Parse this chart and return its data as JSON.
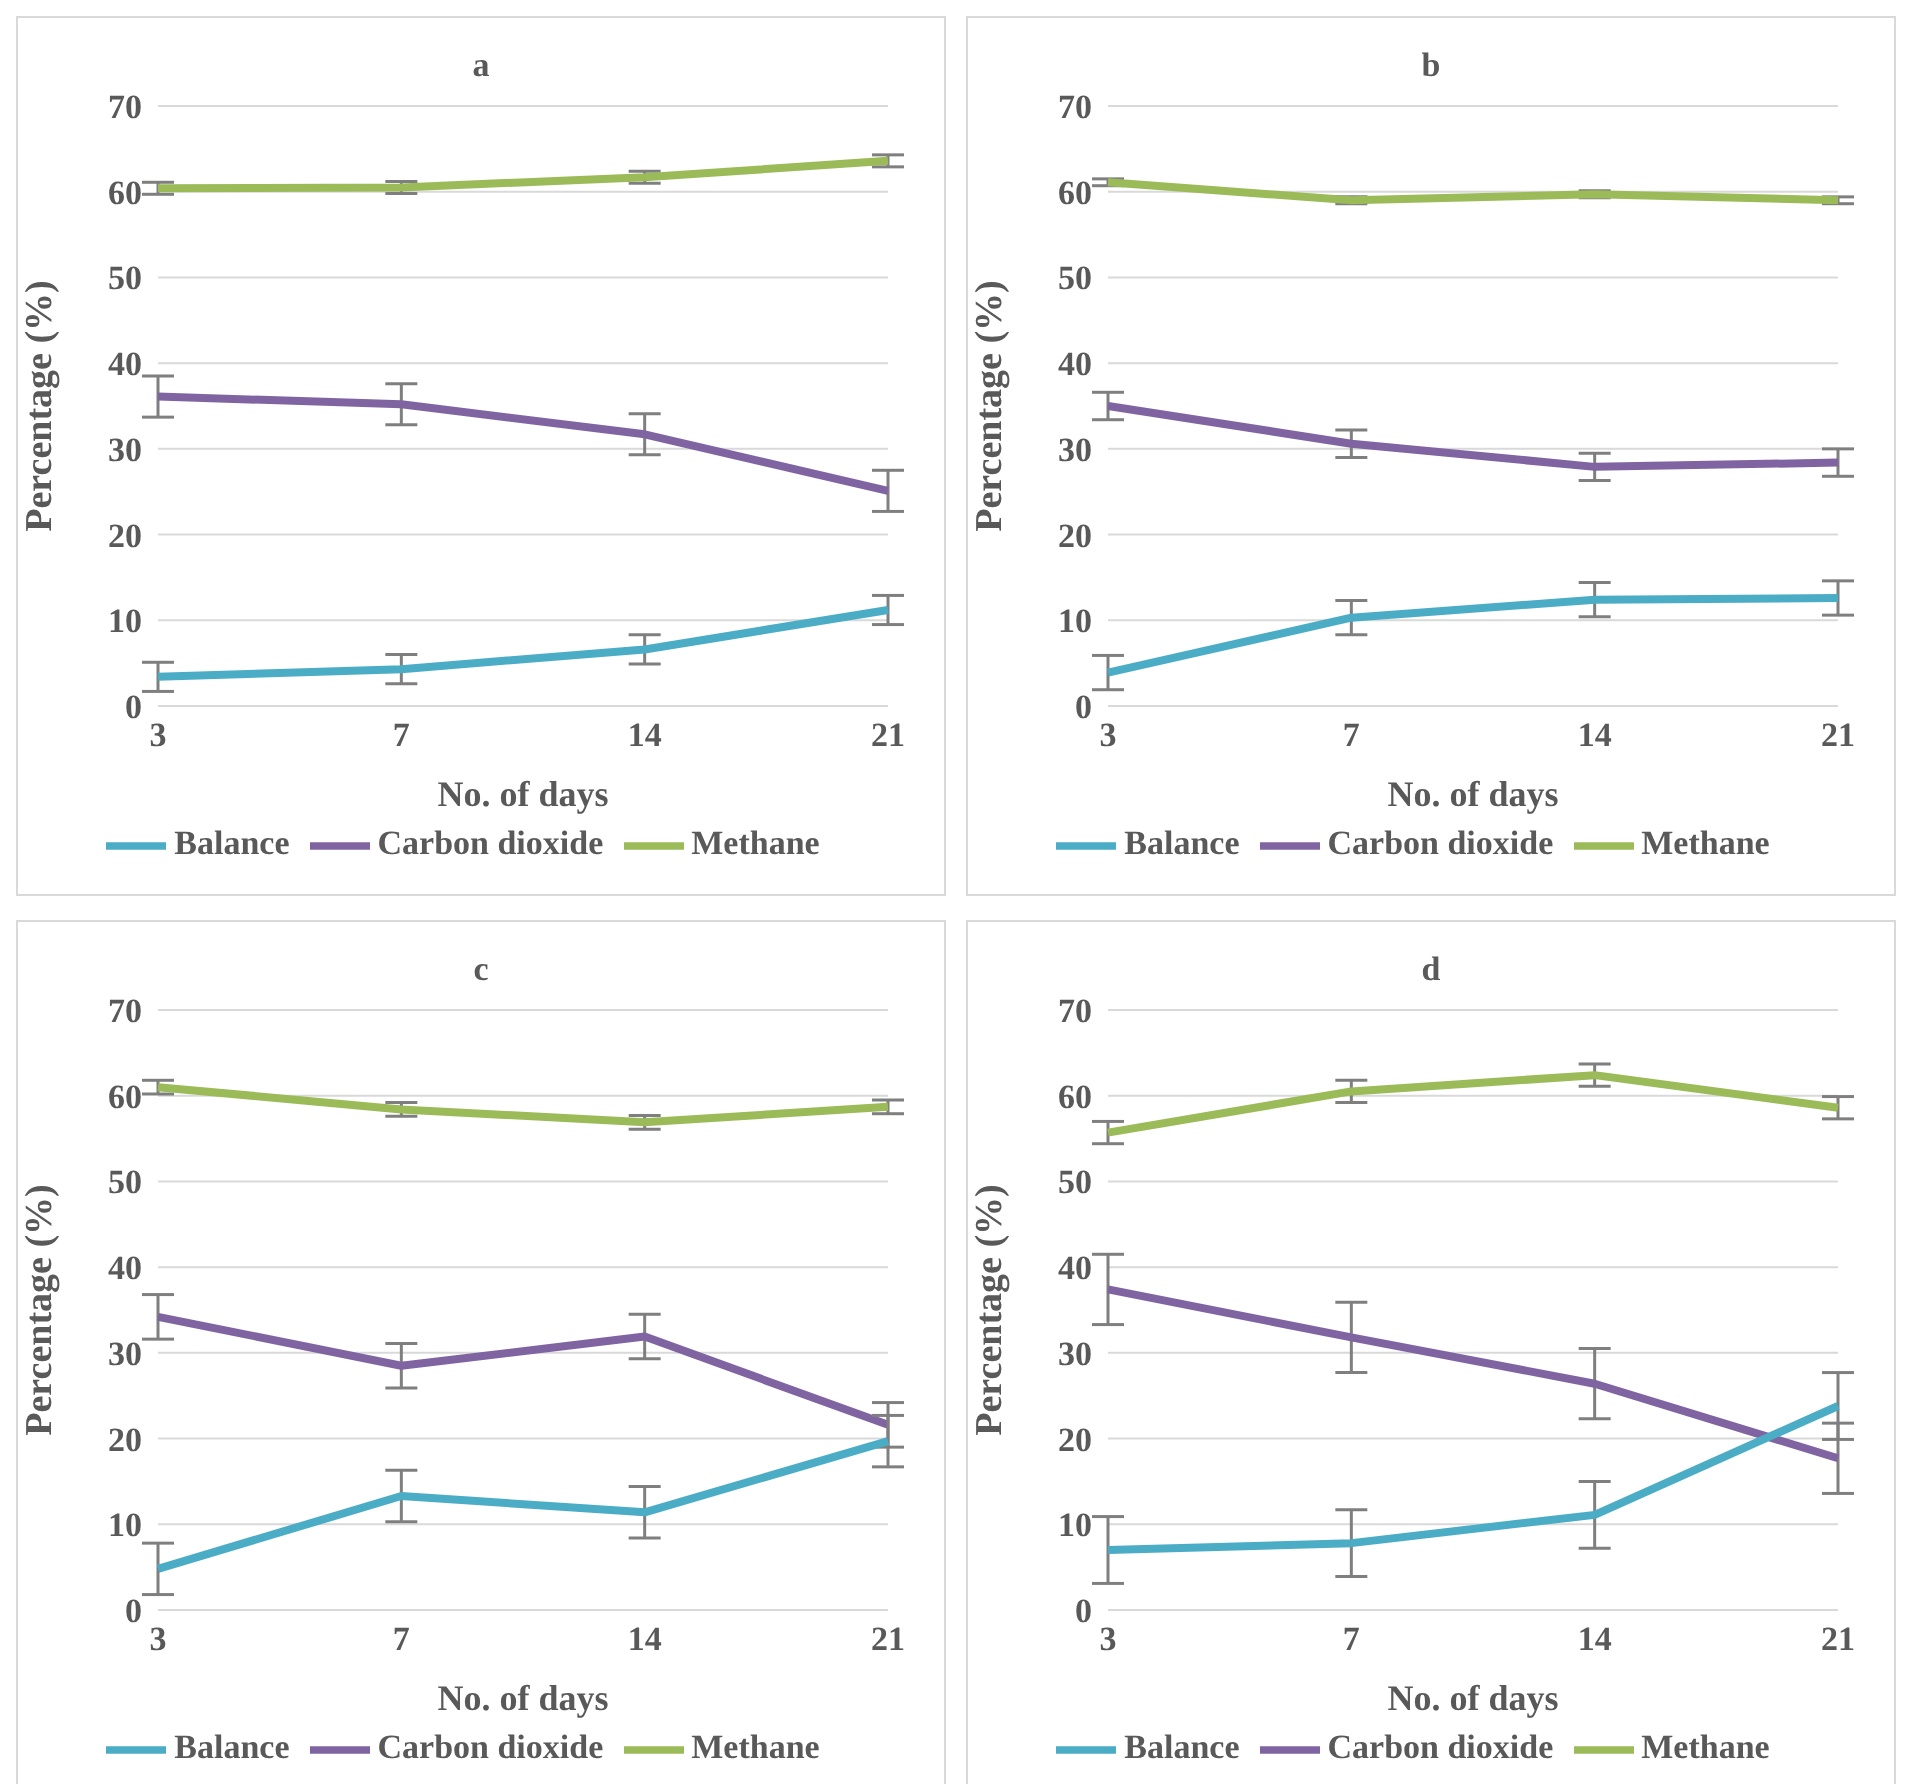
{
  "chart_data": [
    {
      "type": "line",
      "title": "a",
      "xlabel": "No. of days",
      "ylabel": "Percentage (%)",
      "categories": [
        "3",
        "7",
        "14",
        "21"
      ],
      "ylim": [
        0,
        70
      ],
      "yticks": [
        0,
        10,
        20,
        30,
        40,
        50,
        60,
        70
      ],
      "grid": "y",
      "legend": "bottom",
      "marker": "none",
      "line_style": "solid",
      "series": [
        {
          "name": "Methane",
          "color": "#9bbb59",
          "values": [
            60.4,
            60.5,
            61.7,
            63.6
          ],
          "errors": [
            0.7,
            0.7,
            0.7,
            0.7
          ]
        },
        {
          "name": "Carbon dioxide",
          "color": "#8064a2",
          "values": [
            36.1,
            35.2,
            31.7,
            25.1
          ],
          "errors": [
            2.4,
            2.4,
            2.4,
            2.4
          ]
        },
        {
          "name": "Balance",
          "color": "#4bacc6",
          "values": [
            3.4,
            4.3,
            6.6,
            11.2
          ],
          "errors": [
            1.7,
            1.7,
            1.7,
            1.7
          ]
        }
      ]
    },
    {
      "type": "line",
      "title": "b",
      "xlabel": "No. of days",
      "ylabel": "Percentage (%)",
      "categories": [
        "3",
        "7",
        "14",
        "21"
      ],
      "ylim": [
        0,
        70
      ],
      "yticks": [
        0,
        10,
        20,
        30,
        40,
        50,
        60,
        70
      ],
      "grid": "y",
      "legend": "bottom",
      "marker": "none",
      "line_style": "solid",
      "series": [
        {
          "name": "Methane",
          "color": "#9bbb59",
          "values": [
            61.1,
            59.0,
            59.7,
            59.0
          ],
          "errors": [
            0.4,
            0.4,
            0.4,
            0.4
          ]
        },
        {
          "name": "Carbon dioxide",
          "color": "#8064a2",
          "values": [
            35.0,
            30.6,
            27.9,
            28.4
          ],
          "errors": [
            1.6,
            1.6,
            1.6,
            1.6
          ]
        },
        {
          "name": "Balance",
          "color": "#4bacc6",
          "values": [
            3.9,
            10.3,
            12.4,
            12.6
          ],
          "errors": [
            2.0,
            2.0,
            2.0,
            2.0
          ]
        }
      ]
    },
    {
      "type": "line",
      "title": "c",
      "xlabel": "No. of days",
      "ylabel": "Percentage (%)",
      "categories": [
        "3",
        "7",
        "14",
        "21"
      ],
      "ylim": [
        0,
        70
      ],
      "yticks": [
        0,
        10,
        20,
        30,
        40,
        50,
        60,
        70
      ],
      "grid": "y",
      "legend": "bottom",
      "marker": "none",
      "line_style": "solid",
      "series": [
        {
          "name": "Methane",
          "color": "#9bbb59",
          "values": [
            61.0,
            58.4,
            56.9,
            58.7
          ],
          "errors": [
            0.8,
            0.8,
            0.8,
            0.8
          ]
        },
        {
          "name": "Carbon dioxide",
          "color": "#8064a2",
          "values": [
            34.2,
            28.5,
            31.9,
            21.6
          ],
          "errors": [
            2.6,
            2.6,
            2.6,
            2.6
          ]
        },
        {
          "name": "Balance",
          "color": "#4bacc6",
          "values": [
            4.8,
            13.3,
            11.4,
            19.7
          ],
          "errors": [
            3.0,
            3.0,
            3.0,
            3.0
          ]
        }
      ]
    },
    {
      "type": "line",
      "title": "d",
      "xlabel": "No. of days",
      "ylabel": "Percentage (%)",
      "categories": [
        "3",
        "7",
        "14",
        "21"
      ],
      "ylim": [
        0,
        70
      ],
      "yticks": [
        0,
        10,
        20,
        30,
        40,
        50,
        60,
        70
      ],
      "grid": "y",
      "legend": "bottom",
      "marker": "none",
      "line_style": "solid",
      "series": [
        {
          "name": "Methane",
          "color": "#9bbb59",
          "values": [
            55.7,
            60.5,
            62.4,
            58.6
          ],
          "errors": [
            1.3,
            1.3,
            1.3,
            1.3
          ]
        },
        {
          "name": "Carbon dioxide",
          "color": "#8064a2",
          "values": [
            37.4,
            31.8,
            26.4,
            17.7
          ],
          "errors": [
            4.1,
            4.1,
            4.1,
            4.1
          ]
        },
        {
          "name": "Balance",
          "color": "#4bacc6",
          "values": [
            7.0,
            7.8,
            11.1,
            23.8
          ],
          "errors": [
            3.9,
            3.9,
            3.9,
            3.9
          ]
        }
      ]
    }
  ]
}
